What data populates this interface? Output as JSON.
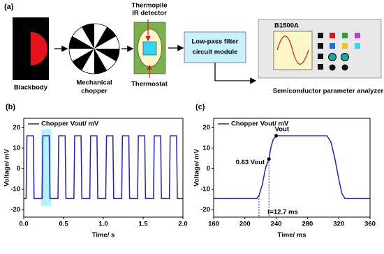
{
  "diagram": {
    "panel_label": "(a)",
    "blackbody": "Blackbody",
    "chopper": [
      "Mechanical",
      "chopper"
    ],
    "detector": [
      "Thermopile",
      "IR detector"
    ],
    "thermostat": "Thermostat",
    "filter": [
      "Low-pass filter",
      "circuit module"
    ],
    "instrument": "B1500A",
    "analyzer": "Semiconductor parameter analyzer"
  },
  "chart_data": [
    {
      "type": "line",
      "panel_label": "(b)",
      "xlabel": "Time/ s",
      "ylabel": "Voltage/ mV",
      "xlim": [
        0,
        2
      ],
      "xticks": [
        {
          "value": 0,
          "label": "0.0"
        },
        {
          "value": 0.5,
          "label": "0.5"
        },
        {
          "value": 1,
          "label": "1.0"
        },
        {
          "value": 1.5,
          "label": "1.5"
        },
        {
          "value": 2,
          "label": "2.0"
        }
      ],
      "ylim": [
        -23.5,
        24.5
      ],
      "yticks": [
        -20,
        -10,
        0,
        10,
        20
      ],
      "x": [
        0,
        0.03,
        0.04,
        0.12,
        0.13,
        0.23,
        0.24,
        0.32,
        0.33,
        0.43,
        0.44,
        0.52,
        0.53,
        0.63,
        0.64,
        0.72,
        0.73,
        0.83,
        0.84,
        0.92,
        0.93,
        1.03,
        1.04,
        1.12,
        1.13,
        1.23,
        1.24,
        1.32,
        1.33,
        1.43,
        1.44,
        1.52,
        1.53,
        1.63,
        1.64,
        1.72,
        1.73,
        1.83,
        1.84,
        1.92,
        1.93,
        2
      ],
      "series": [
        {
          "name": "Chopper Vout/ mV",
          "color": "#1f1fd6",
          "values": [
            -14.5,
            -14.5,
            16,
            16,
            -14.5,
            -14.5,
            16,
            16,
            -14.5,
            -14.5,
            16,
            16,
            -14.5,
            -14.5,
            16,
            16,
            -14.5,
            -14.5,
            16,
            16,
            -14.5,
            -14.5,
            16,
            16,
            -14.5,
            -14.5,
            16,
            16,
            -14.5,
            -14.5,
            16,
            16,
            -14.5,
            -14.5,
            16,
            16,
            -14.5,
            -14.5,
            16,
            16,
            -14.5,
            -14.5
          ]
        }
      ]
    },
    {
      "type": "line",
      "panel_label": "(c)",
      "xlabel": "Time/ ms",
      "ylabel": "Voltage/ mV",
      "xlim": [
        160,
        360
      ],
      "xticks": [
        160,
        200,
        240,
        280,
        320,
        360
      ],
      "ylim": [
        -23.5,
        24.5
      ],
      "yticks": [
        -20,
        -10,
        0,
        10,
        20
      ],
      "x": [
        160,
        215,
        218,
        222,
        226.5,
        230.7,
        233,
        236,
        240,
        305,
        310,
        315,
        320,
        324,
        328,
        360
      ],
      "series": [
        {
          "name": "Chopper Vout/ mV",
          "color": "#1f1fd6",
          "values": [
            -14.5,
            -14.5,
            -13,
            -8,
            0.5,
            4.7,
            10,
            14,
            16,
            16,
            13,
            5,
            -5,
            -12,
            -14.5,
            -14.5
          ]
        }
      ],
      "annotations": [
        "0.63 Vout",
        "Vout",
        "t=12.7 ms"
      ]
    }
  ]
}
